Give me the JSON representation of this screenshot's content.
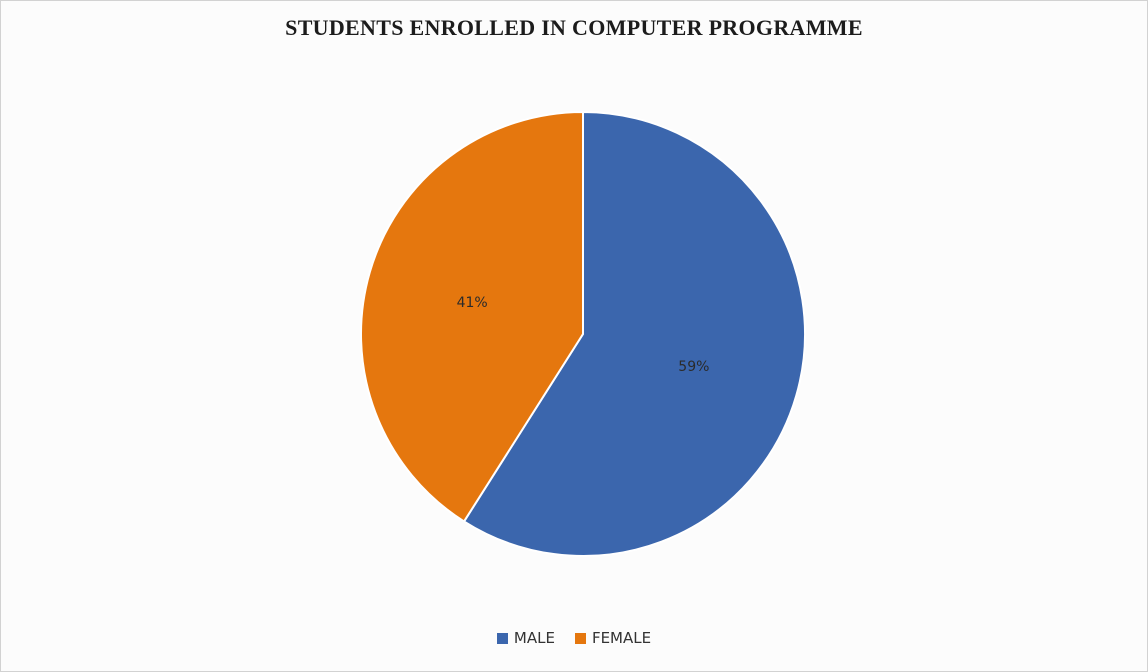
{
  "chart_data": {
    "type": "pie",
    "title": "STUDENTS ENROLLED IN COMPUTER PROGRAMME",
    "categories": [
      "MALE",
      "FEMALE"
    ],
    "values": [
      59,
      41
    ],
    "labels": [
      "59%",
      "41%"
    ],
    "colors": [
      "#3b66ad",
      "#e5770e"
    ],
    "legend_position": "bottom"
  }
}
